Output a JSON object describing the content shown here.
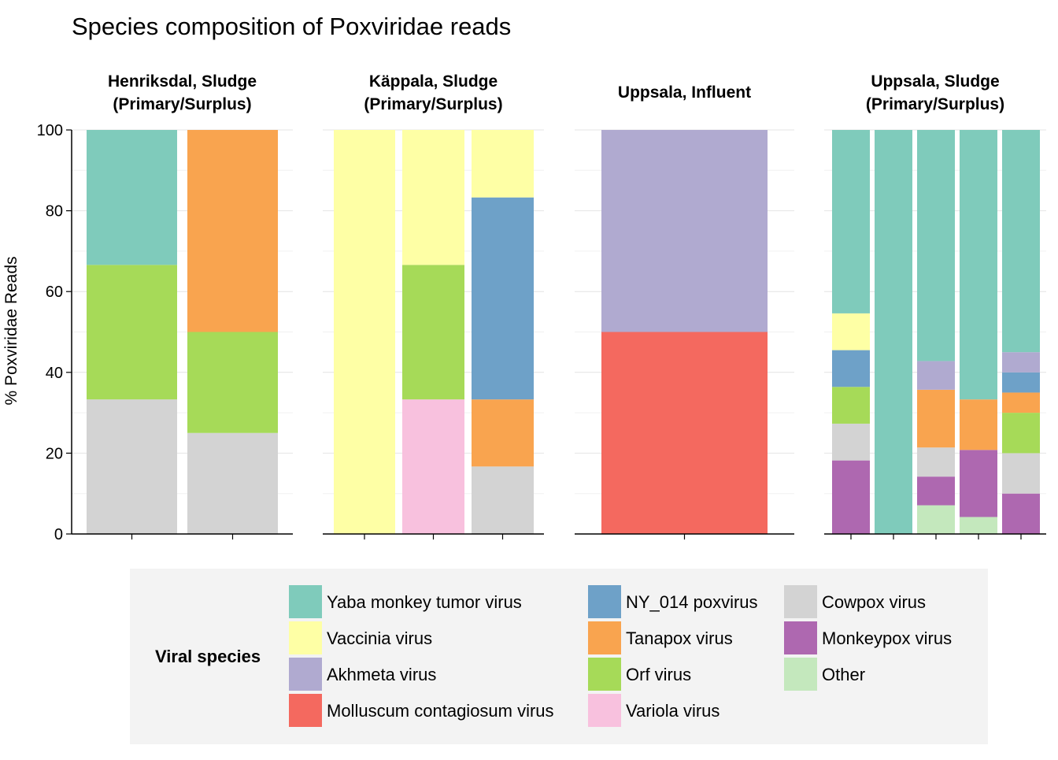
{
  "chart_data": {
    "type": "bar",
    "stacked": true,
    "faceted": true,
    "title": "Species composition of Poxviridae reads",
    "ylabel": "% Poxviridae Reads",
    "ylim": [
      0,
      100
    ],
    "yticks": [
      0,
      20,
      40,
      60,
      80,
      100
    ],
    "grid": true,
    "legend": {
      "title": "Viral species",
      "position": "bottom",
      "entries": [
        {
          "name": "Yaba monkey tumor virus",
          "color": "#7fcbbb"
        },
        {
          "name": "Vaccinia virus",
          "color": "#feffa5"
        },
        {
          "name": "Akhmeta virus",
          "color": "#b0aad0"
        },
        {
          "name": "Molluscum contagiosum virus",
          "color": "#f4695f"
        },
        {
          "name": "NY_014 poxvirus",
          "color": "#6ea1c8"
        },
        {
          "name": "Tanapox virus",
          "color": "#f9a44f"
        },
        {
          "name": "Orf virus",
          "color": "#a6da58"
        },
        {
          "name": "Variola virus",
          "color": "#f8c1de"
        },
        {
          "name": "Cowpox virus",
          "color": "#d3d3d3"
        },
        {
          "name": "Monkeypox virus",
          "color": "#ae68b0"
        },
        {
          "name": "Other",
          "color": "#c4e8bd"
        }
      ]
    },
    "panels": [
      {
        "title_lines": [
          "Henriksdal, Sludge",
          "(Primary/Surplus)"
        ],
        "bars": [
          {
            "segments": [
              {
                "species": "Cowpox virus",
                "value": 33.3
              },
              {
                "species": "Orf virus",
                "value": 33.3
              },
              {
                "species": "Yaba monkey tumor virus",
                "value": 33.4
              }
            ]
          },
          {
            "segments": [
              {
                "species": "Cowpox virus",
                "value": 25
              },
              {
                "species": "Orf virus",
                "value": 25
              },
              {
                "species": "Tanapox virus",
                "value": 50
              }
            ]
          }
        ]
      },
      {
        "title_lines": [
          "Käppala, Sludge",
          "(Primary/Surplus)"
        ],
        "bars": [
          {
            "segments": [
              {
                "species": "Vaccinia virus",
                "value": 100
              }
            ]
          },
          {
            "segments": [
              {
                "species": "Variola virus",
                "value": 33.3
              },
              {
                "species": "Orf virus",
                "value": 33.3
              },
              {
                "species": "Vaccinia virus",
                "value": 33.4
              }
            ]
          },
          {
            "segments": [
              {
                "species": "Cowpox virus",
                "value": 16.7
              },
              {
                "species": "Tanapox virus",
                "value": 16.6
              },
              {
                "species": "NY_014 poxvirus",
                "value": 50
              },
              {
                "species": "Vaccinia virus",
                "value": 16.7
              }
            ]
          }
        ]
      },
      {
        "title_lines": [
          "Uppsala, Influent"
        ],
        "bars": [
          {
            "segments": [
              {
                "species": "Molluscum contagiosum virus",
                "value": 50
              },
              {
                "species": "Akhmeta virus",
                "value": 50
              }
            ]
          }
        ]
      },
      {
        "title_lines": [
          "Uppsala, Sludge",
          "(Primary/Surplus)"
        ],
        "bars": [
          {
            "segments": [
              {
                "species": "Monkeypox virus",
                "value": 18.2
              },
              {
                "species": "Cowpox virus",
                "value": 9.1
              },
              {
                "species": "Orf virus",
                "value": 9.1
              },
              {
                "species": "NY_014 poxvirus",
                "value": 9.1
              },
              {
                "species": "Vaccinia virus",
                "value": 9.1
              },
              {
                "species": "Yaba monkey tumor virus",
                "value": 45.4
              }
            ]
          },
          {
            "segments": [
              {
                "species": "Yaba monkey tumor virus",
                "value": 100
              }
            ]
          },
          {
            "segments": [
              {
                "species": "Other",
                "value": 7.1
              },
              {
                "species": "Monkeypox virus",
                "value": 7.1
              },
              {
                "species": "Cowpox virus",
                "value": 7.2
              },
              {
                "species": "Tanapox virus",
                "value": 14.3
              },
              {
                "species": "Akhmeta virus",
                "value": 7.1
              },
              {
                "species": "Yaba monkey tumor virus",
                "value": 57.2
              }
            ]
          },
          {
            "segments": [
              {
                "species": "Other",
                "value": 4.2
              },
              {
                "species": "Monkeypox virus",
                "value": 16.6
              },
              {
                "species": "Tanapox virus",
                "value": 12.5
              },
              {
                "species": "Yaba monkey tumor virus",
                "value": 66.7
              }
            ]
          },
          {
            "segments": [
              {
                "species": "Monkeypox virus",
                "value": 10
              },
              {
                "species": "Cowpox virus",
                "value": 10
              },
              {
                "species": "Orf virus",
                "value": 10
              },
              {
                "species": "Tanapox virus",
                "value": 5
              },
              {
                "species": "NY_014 poxvirus",
                "value": 5
              },
              {
                "species": "Akhmeta virus",
                "value": 5
              },
              {
                "species": "Yaba monkey tumor virus",
                "value": 55
              }
            ]
          }
        ]
      }
    ]
  }
}
